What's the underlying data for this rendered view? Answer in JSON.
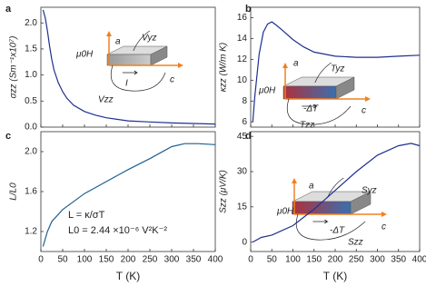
{
  "chart_data": [
    {
      "type": "line",
      "panel_label": "a",
      "ylabel": "σzz (Sm⁻¹x10⁷)",
      "color": "#1f2f8f",
      "x": [
        5,
        10,
        15,
        20,
        25,
        30,
        40,
        50,
        60,
        75,
        100,
        125,
        150,
        200,
        250,
        300,
        350,
        400
      ],
      "values": [
        2.25,
        2.1,
        1.85,
        1.55,
        1.3,
        1.1,
        0.85,
        0.68,
        0.55,
        0.42,
        0.3,
        0.23,
        0.18,
        0.12,
        0.1,
        0.08,
        0.07,
        0.06
      ],
      "xlim": [
        0,
        400
      ],
      "ylim": [
        0,
        2.3
      ],
      "xticks": [
        0,
        50,
        100,
        150,
        200,
        250,
        300,
        350,
        400
      ],
      "yticks": [
        {
          "value": 0,
          "label": "0.0"
        },
        {
          "value": 0.5,
          "label": "0.5"
        },
        {
          "value": 1,
          "label": "1.0"
        },
        {
          "value": 1.5,
          "label": "1.5"
        },
        {
          "value": 2,
          "label": "2.0"
        }
      ],
      "inset_labels": [
        "μ0H",
        "a",
        "Vyz",
        "I",
        "Vzz",
        "c"
      ]
    },
    {
      "type": "line",
      "panel_label": "b",
      "ylabel": "κzz (W/m K)",
      "color": "#1f2f8f",
      "x": [
        5,
        10,
        20,
        30,
        40,
        50,
        60,
        75,
        100,
        125,
        150,
        200,
        250,
        300,
        350,
        400
      ],
      "values": [
        6,
        8.5,
        12.5,
        14.6,
        15.4,
        15.6,
        15.3,
        14.8,
        13.9,
        13.2,
        12.7,
        12.3,
        12.2,
        12.2,
        12.3,
        12.4
      ],
      "xlim": [
        0,
        400
      ],
      "ylim": [
        5.5,
        17
      ],
      "xticks": [
        0,
        50,
        100,
        150,
        200,
        250,
        300,
        350,
        400
      ],
      "yticks": [
        6,
        8,
        10,
        12,
        14,
        16
      ],
      "inset_labels": [
        "a",
        "Tyz",
        "μ0H",
        "-ΔT",
        "c",
        "Tzz"
      ]
    },
    {
      "type": "line",
      "panel_label": "c",
      "ylabel": "L/L0",
      "xlabel": "T (K)",
      "color": "#1f5f8f",
      "x": [
        5,
        15,
        25,
        50,
        100,
        150,
        200,
        250,
        300,
        330,
        360,
        400
      ],
      "values": [
        1.05,
        1.2,
        1.3,
        1.42,
        1.58,
        1.7,
        1.82,
        1.93,
        2.05,
        2.08,
        2.08,
        2.07
      ],
      "xlim": [
        0,
        400
      ],
      "ylim": [
        1.0,
        2.2
      ],
      "xticks": [
        0,
        50,
        100,
        150,
        200,
        250,
        300,
        350,
        400
      ],
      "yticks": [
        1.2,
        1.6,
        {
          "value": 2,
          "label": "2.0"
        }
      ],
      "annotations": [
        "L = κ/σT",
        "L0 = 2.44 ×10⁻⁶ V²K⁻²"
      ]
    },
    {
      "type": "line",
      "panel_label": "d",
      "ylabel": "Szz (μV/K)",
      "xlabel": "T (K)",
      "color": "#1f2f8f",
      "x": [
        5,
        25,
        50,
        100,
        150,
        200,
        250,
        300,
        350,
        380,
        400
      ],
      "values": [
        0,
        2,
        3,
        7,
        14,
        22,
        30,
        37,
        41,
        42,
        41
      ],
      "xlim": [
        0,
        400
      ],
      "ylim": [
        -4,
        47
      ],
      "xticks": [
        0,
        50,
        100,
        150,
        200,
        250,
        300,
        350,
        400
      ],
      "yticks": [
        0,
        15,
        30,
        45
      ],
      "inset_labels": [
        "a",
        "Syz",
        "μ0H",
        "-ΔT",
        "c",
        "Szz"
      ]
    }
  ]
}
